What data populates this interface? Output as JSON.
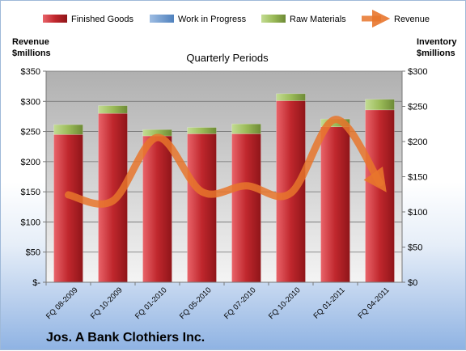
{
  "chart_data": {
    "type": "bar",
    "title": "Quarterly Periods",
    "company": "Jos. A Bank Clothiers Inc.",
    "categories": [
      "FQ 08-2009",
      "FQ 10-2009",
      "FQ 01-2010",
      "FQ 05-2010",
      "FQ 07-2010",
      "FQ 10-2010",
      "FQ 01-2011",
      "FQ 04-2011"
    ],
    "stacked": true,
    "series": [
      {
        "name": "Finished Goods",
        "axis": "right",
        "color": "#c0272d",
        "values": [
          210,
          240,
          208,
          211,
          211,
          258,
          221,
          245
        ]
      },
      {
        "name": "Work in Progress",
        "axis": "right",
        "color": "#4f81bd",
        "values": [
          0,
          0,
          0,
          0,
          0,
          0,
          0,
          0
        ]
      },
      {
        "name": "Raw Materials",
        "axis": "right",
        "color": "#9bbb59",
        "values": [
          14,
          11,
          9,
          9,
          14,
          10,
          11,
          15
        ]
      },
      {
        "name": "Revenue",
        "axis": "left",
        "type": "line",
        "color": "#e8762c",
        "values": [
          145,
          135,
          240,
          150,
          160,
          148,
          270,
          165
        ]
      }
    ],
    "ylabel_left": "Revenue\n$millions",
    "ylabel_right": "Inventory\n$millions",
    "y_left": {
      "min": 0,
      "max": 350,
      "step": 50,
      "ticks": [
        "$-",
        "$50",
        "$100",
        "$150",
        "$200",
        "$250",
        "$300",
        "$350"
      ]
    },
    "y_right": {
      "min": 0,
      "max": 300,
      "step": 50,
      "ticks": [
        "$0",
        "$50",
        "$100",
        "$150",
        "$200",
        "$250",
        "$300"
      ]
    },
    "grid": true,
    "legend": "top"
  }
}
